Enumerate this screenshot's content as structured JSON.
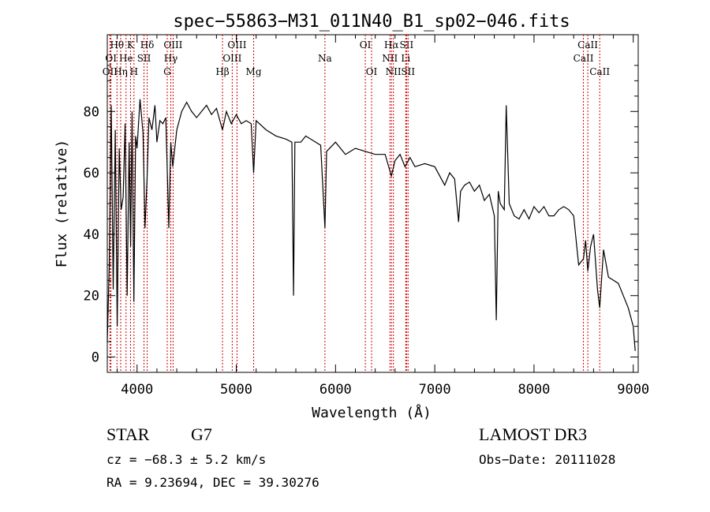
{
  "chart_data": {
    "type": "line",
    "title": "spec−55863−M31_011N40_B1_sp02−046.fits",
    "xlabel": "Wavelength (Å)",
    "ylabel": "Flux (relative)",
    "xlim": [
      3700,
      9050
    ],
    "ylim": [
      -5,
      105
    ],
    "x_ticks": [
      4000,
      5000,
      6000,
      7000,
      8000,
      9000
    ],
    "x_tick_labels": [
      "4000",
      "5000",
      "6000",
      "7000",
      "8000",
      "9000"
    ],
    "y_ticks": [
      0,
      20,
      40,
      60,
      80
    ],
    "y_tick_labels": [
      "0",
      "20",
      "40",
      "60",
      "80"
    ],
    "grid": false,
    "line_color": "#000000",
    "marker_color": "#cc0000",
    "series": [
      {
        "name": "flux",
        "x": [
          3700,
          3720,
          3740,
          3760,
          3780,
          3800,
          3820,
          3840,
          3860,
          3880,
          3900,
          3920,
          3935,
          3950,
          3968,
          3985,
          4000,
          4030,
          4060,
          4080,
          4101,
          4120,
          4150,
          4180,
          4200,
          4230,
          4260,
          4290,
          4305,
          4320,
          4340,
          4360,
          4400,
          4450,
          4500,
          4550,
          4600,
          4650,
          4700,
          4750,
          4800,
          4861,
          4900,
          4950,
          5000,
          5050,
          5100,
          5150,
          5175,
          5200,
          5300,
          5400,
          5500,
          5560,
          5577,
          5590,
          5650,
          5700,
          5800,
          5850,
          5893,
          5910,
          6000,
          6100,
          6200,
          6300,
          6400,
          6500,
          6563,
          6600,
          6650,
          6700,
          6750,
          6800,
          6900,
          7000,
          7100,
          7150,
          7200,
          7240,
          7260,
          7300,
          7350,
          7400,
          7450,
          7500,
          7550,
          7600,
          7620,
          7640,
          7660,
          7700,
          7720,
          7750,
          7800,
          7850,
          7900,
          7950,
          8000,
          8050,
          8100,
          8150,
          8200,
          8250,
          8300,
          8350,
          8400,
          8450,
          8498,
          8520,
          8542,
          8570,
          8600,
          8640,
          8662,
          8700,
          8750,
          8800,
          8850,
          8900,
          8950,
          9000,
          9020
        ],
        "y": [
          5,
          30,
          82,
          22,
          74,
          10,
          68,
          48,
          52,
          76,
          20,
          70,
          36,
          80,
          18,
          72,
          68,
          84,
          73,
          42,
          58,
          78,
          74,
          82,
          70,
          77,
          76,
          78,
          60,
          42,
          70,
          62,
          74,
          80,
          83,
          80,
          78,
          80,
          82,
          79,
          81,
          74,
          80,
          76,
          79,
          76,
          77,
          76,
          60,
          77,
          74,
          72,
          71,
          70,
          20,
          70,
          70,
          72,
          70,
          69,
          42,
          67,
          70,
          66,
          68,
          67,
          66,
          66,
          59,
          64,
          66,
          62,
          65,
          62,
          63,
          62,
          56,
          60,
          58,
          44,
          54,
          56,
          57,
          54,
          56,
          51,
          53,
          46,
          12,
          54,
          50,
          48,
          82,
          50,
          46,
          45,
          48,
          45,
          49,
          47,
          49,
          46,
          46,
          48,
          49,
          48,
          46,
          30,
          32,
          38,
          28,
          36,
          40,
          22,
          16,
          35,
          26,
          25,
          24,
          20,
          16,
          10,
          2
        ]
      }
    ],
    "line_markers": [
      {
        "label": "Hθ",
        "wavelength": 3798,
        "row": 1
      },
      {
        "label": "OII",
        "wavelength": 3727,
        "row": 3
      },
      {
        "label": "OI",
        "wavelength": 3737,
        "row": 2
      },
      {
        "label": "He",
        "wavelength": 3889,
        "row": 2
      },
      {
        "label": "Hη",
        "wavelength": 3835,
        "row": 3
      },
      {
        "label": "K",
        "wavelength": 3934,
        "row": 1
      },
      {
        "label": "H",
        "wavelength": 3969,
        "row": 3
      },
      {
        "label": "SII",
        "wavelength": 4070,
        "row": 2
      },
      {
        "label": "Hδ",
        "wavelength": 4102,
        "row": 1
      },
      {
        "label": "OIII",
        "wavelength": 4363,
        "row": 1
      },
      {
        "label": "Hγ",
        "wavelength": 4340,
        "row": 2
      },
      {
        "label": "G",
        "wavelength": 4304,
        "row": 3
      },
      {
        "label": "Hβ",
        "wavelength": 4861,
        "row": 3
      },
      {
        "label": "OIII",
        "wavelength": 4959,
        "row": 2
      },
      {
        "label": "OIII",
        "wavelength": 5007,
        "row": 1
      },
      {
        "label": "Mg",
        "wavelength": 5175,
        "row": 3
      },
      {
        "label": "Na",
        "wavelength": 5893,
        "row": 2
      },
      {
        "label": "OI",
        "wavelength": 6300,
        "row": 1
      },
      {
        "label": "OI",
        "wavelength": 6363,
        "row": 3
      },
      {
        "label": "NII",
        "wavelength": 6548,
        "row": 2
      },
      {
        "label": "Hα",
        "wavelength": 6563,
        "row": 1
      },
      {
        "label": "NII",
        "wavelength": 6583,
        "row": 3
      },
      {
        "label": "Li",
        "wavelength": 6707,
        "row": 2
      },
      {
        "label": "SII",
        "wavelength": 6716,
        "row": 1
      },
      {
        "label": "SII",
        "wavelength": 6731,
        "row": 3
      },
      {
        "label": "CaII",
        "wavelength": 8498,
        "row": 2
      },
      {
        "label": "CaII",
        "wavelength": 8542,
        "row": 1
      },
      {
        "label": "CaII",
        "wavelength": 8662,
        "row": 3
      }
    ]
  },
  "info": {
    "class": "STAR",
    "subclass": "G7",
    "cz": "cz = −68.3 ± 5.2 km/s",
    "coords": "RA =   9.23694, DEC =  39.30276",
    "survey": "LAMOST DR3",
    "obs_date": "Obs−Date: 20111028"
  }
}
